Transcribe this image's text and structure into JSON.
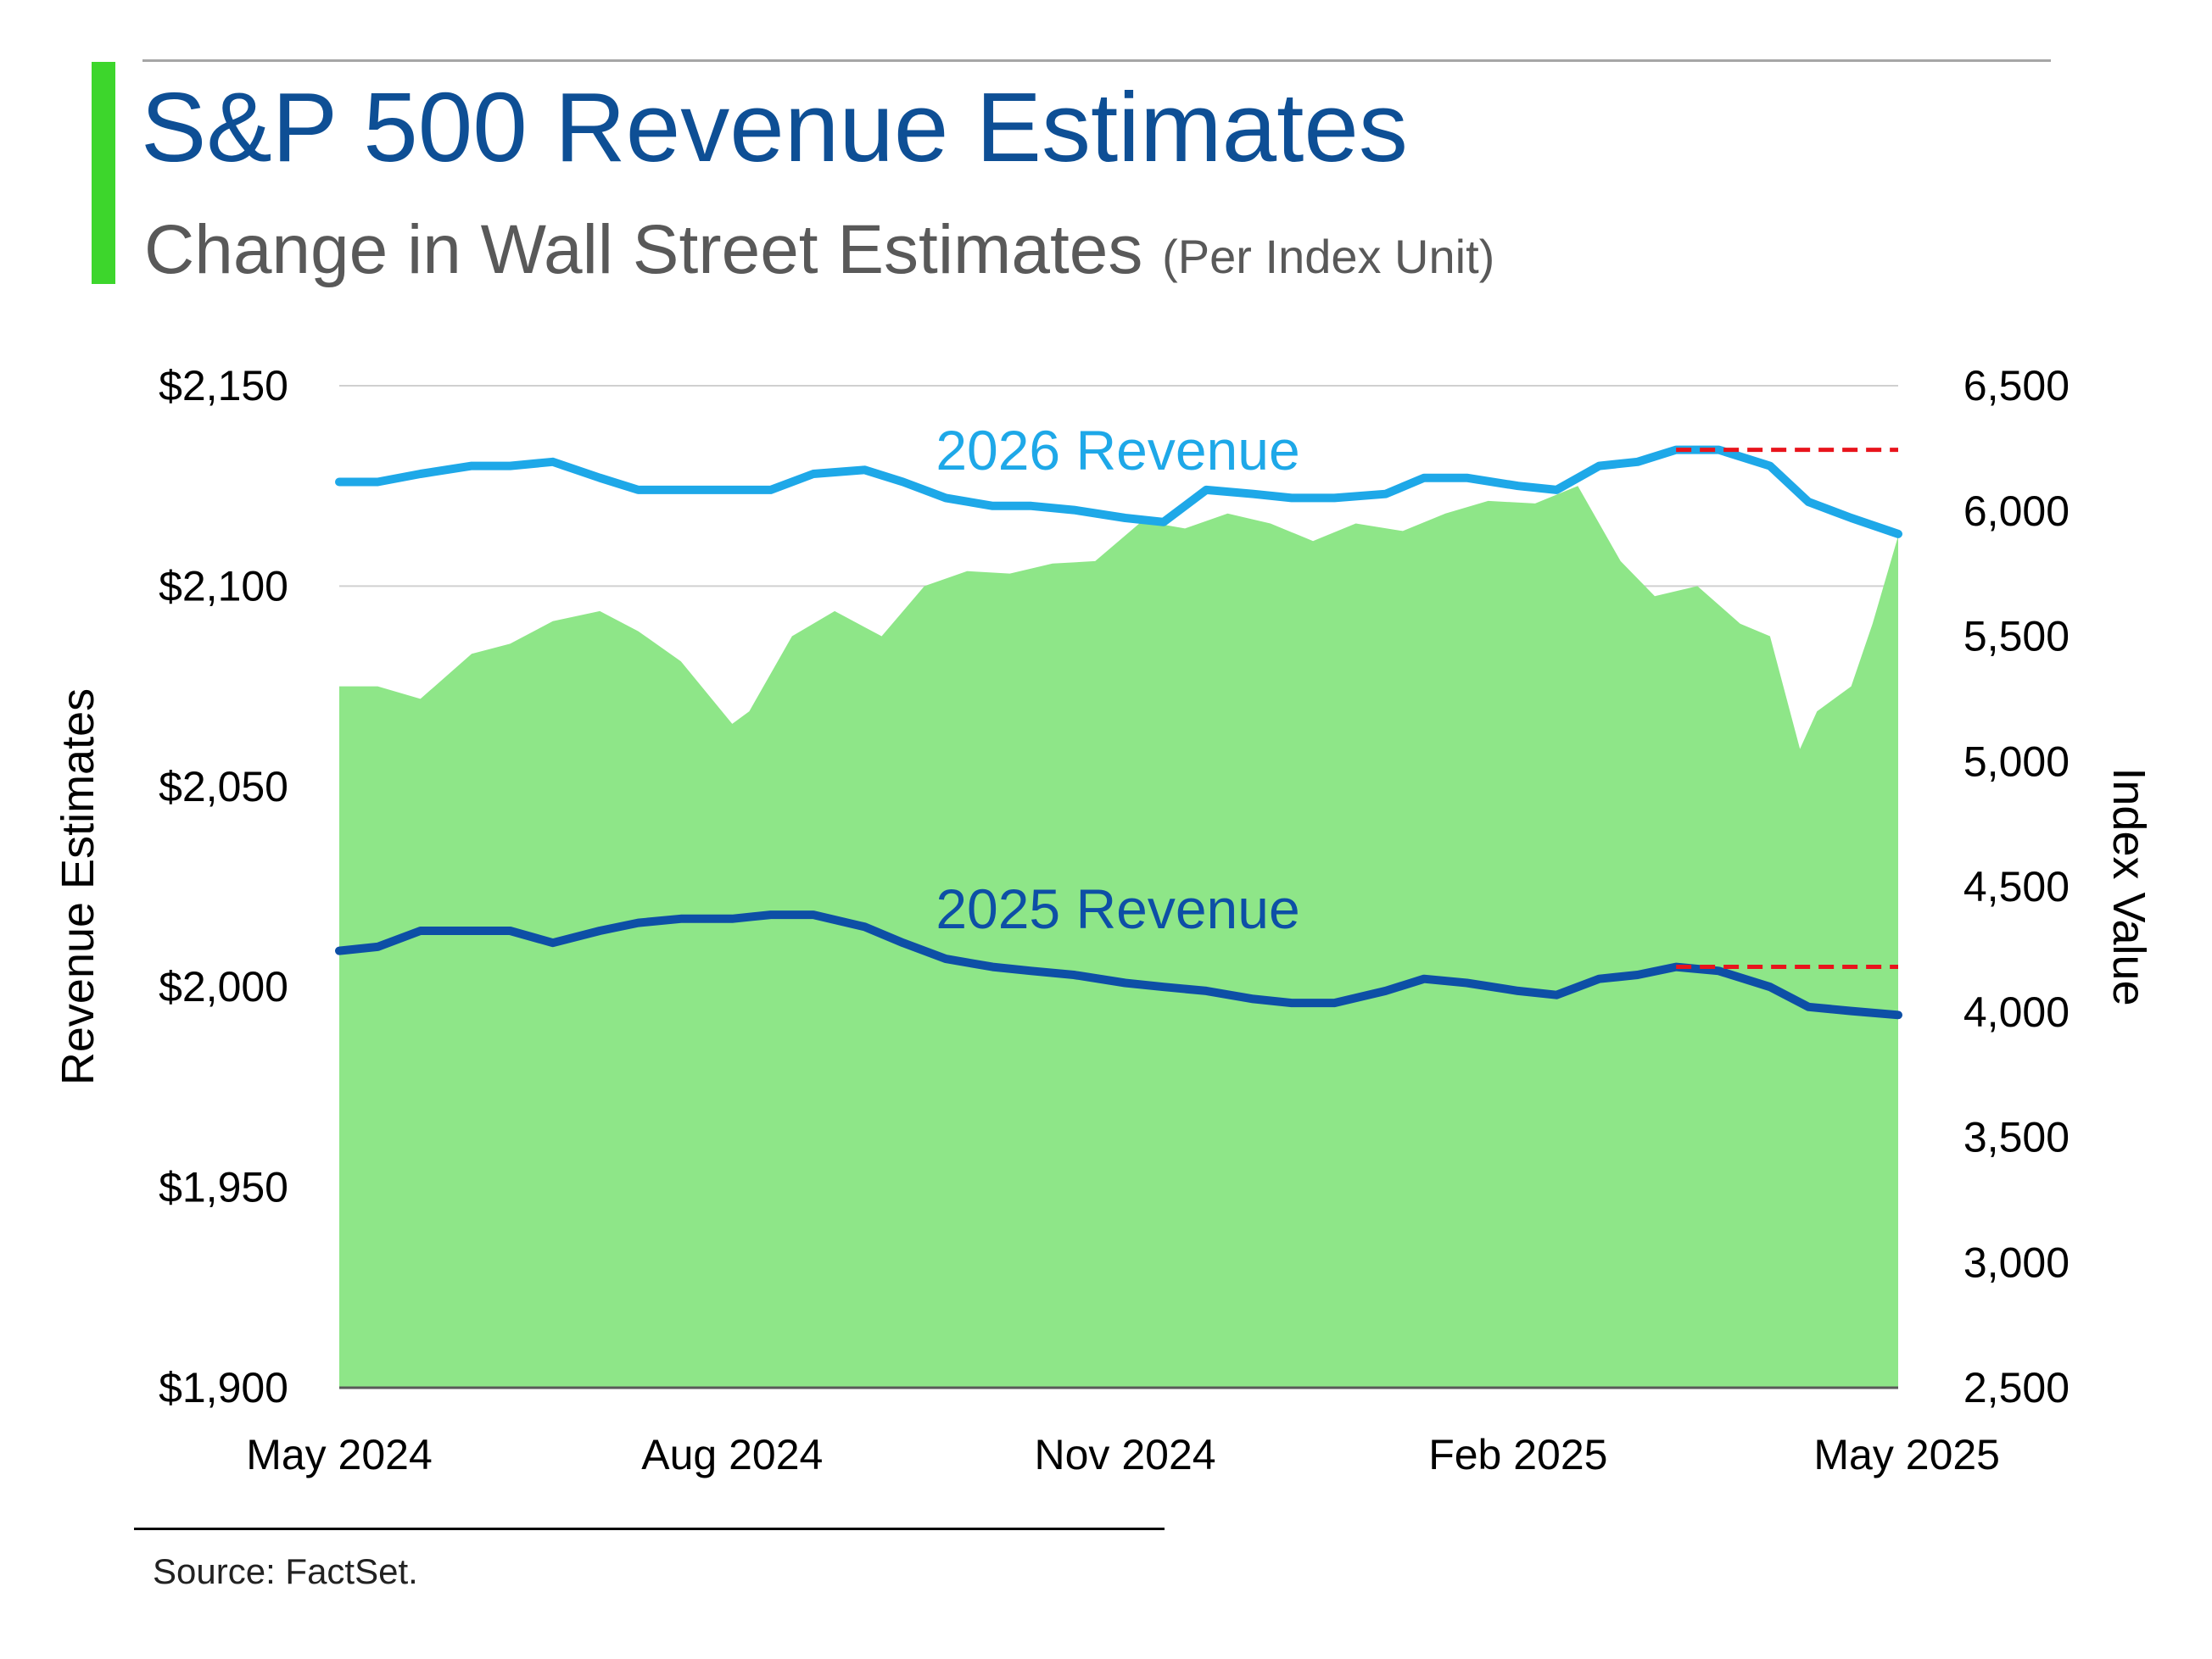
{
  "header": {
    "title": "S&P 500 Revenue Estimates",
    "subtitle": "Change in Wall Street Estimates",
    "subtitle_note": "(Per Index Unit)"
  },
  "footer": {
    "source": "Source: FactSet."
  },
  "colors": {
    "accent_bar": "#3dd62c",
    "area_fill": "#8ee688",
    "rev_2026": "#1ea8e8",
    "rev_2025": "#0d4fa6",
    "peak_ref_line": "#e8141c",
    "title": "#0e4f95",
    "grid": "#d0d0d0"
  },
  "chart_data": {
    "type": "line",
    "title": "S&P 500 Revenue Estimates",
    "ylabel_left": "Revenue Estimates",
    "ylabel_right": "Index Value",
    "xlim": [
      "2024-05-01",
      "2025-05-01"
    ],
    "ylim_left": [
      1900,
      2150
    ],
    "ylim_right": [
      2500,
      6500
    ],
    "x_ticks": [
      "May 2024",
      "Aug 2024",
      "Nov 2024",
      "Feb 2025",
      "May 2025"
    ],
    "x_tick_dates": [
      "2024-05-01",
      "2024-08-01",
      "2024-11-01",
      "2025-02-01",
      "2025-05-01"
    ],
    "y_ticks_left": [
      "$1,900",
      "$1,950",
      "$2,000",
      "$2,050",
      "$2,100",
      "$2,150"
    ],
    "y_tick_values_left": [
      1900,
      1950,
      2000,
      2050,
      2100,
      2150
    ],
    "y_ticks_right": [
      "2,500",
      "3,000",
      "3,500",
      "4,000",
      "4,500",
      "5,000",
      "5,500",
      "6,000",
      "6,500"
    ],
    "y_tick_values_right": [
      2500,
      3000,
      3500,
      4000,
      4500,
      5000,
      5500,
      6000,
      6500
    ],
    "grid": true,
    "series": [
      {
        "name": "2026 Revenue",
        "axis": "left",
        "kind": "line",
        "x": [
          "2024-05-01",
          "2024-05-10",
          "2024-05-20",
          "2024-06-01",
          "2024-06-10",
          "2024-06-20",
          "2024-07-01",
          "2024-07-10",
          "2024-07-20",
          "2024-08-01",
          "2024-08-10",
          "2024-08-20",
          "2024-09-01",
          "2024-09-10",
          "2024-09-20",
          "2024-10-01",
          "2024-10-10",
          "2024-10-20",
          "2024-11-01",
          "2024-11-10",
          "2024-11-20",
          "2024-12-01",
          "2024-12-10",
          "2024-12-20",
          "2025-01-01",
          "2025-01-10",
          "2025-01-20",
          "2025-02-01",
          "2025-02-10",
          "2025-02-20",
          "2025-03-01",
          "2025-03-10",
          "2025-03-20",
          "2025-04-01",
          "2025-04-10",
          "2025-04-20",
          "2025-05-01"
        ],
        "values": [
          2126,
          2126,
          2128,
          2130,
          2130,
          2131,
          2127,
          2124,
          2124,
          2124,
          2124,
          2128,
          2129,
          2126,
          2122,
          2120,
          2120,
          2119,
          2117,
          2116,
          2124,
          2123,
          2122,
          2122,
          2123,
          2127,
          2127,
          2125,
          2124,
          2130,
          2131,
          2134,
          2134,
          2130,
          2121,
          2117,
          2113
        ]
      },
      {
        "name": "2025 Revenue",
        "axis": "left",
        "kind": "line",
        "x": [
          "2024-05-01",
          "2024-05-10",
          "2024-05-20",
          "2024-06-01",
          "2024-06-10",
          "2024-06-20",
          "2024-07-01",
          "2024-07-10",
          "2024-07-20",
          "2024-08-01",
          "2024-08-10",
          "2024-08-20",
          "2024-09-01",
          "2024-09-10",
          "2024-09-20",
          "2024-10-01",
          "2024-10-10",
          "2024-10-20",
          "2024-11-01",
          "2024-11-10",
          "2024-11-20",
          "2024-12-01",
          "2024-12-10",
          "2024-12-20",
          "2025-01-01",
          "2025-01-10",
          "2025-01-20",
          "2025-02-01",
          "2025-02-10",
          "2025-02-20",
          "2025-03-01",
          "2025-03-10",
          "2025-03-20",
          "2025-04-01",
          "2025-04-10",
          "2025-04-20",
          "2025-05-01"
        ],
        "values": [
          2009,
          2010,
          2014,
          2014,
          2014,
          2011,
          2014,
          2016,
          2017,
          2017,
          2018,
          2018,
          2015,
          2011,
          2007,
          2005,
          2004,
          2003,
          2001,
          2000,
          1999,
          1997,
          1996,
          1996,
          1999,
          2002,
          2001,
          1999,
          1998,
          2002,
          2003,
          2005,
          2004,
          2000,
          1995,
          1994,
          1993
        ]
      },
      {
        "name": "Index Value",
        "axis": "right",
        "kind": "area",
        "x": [
          "2024-05-01",
          "2024-05-10",
          "2024-05-20",
          "2024-06-01",
          "2024-06-10",
          "2024-06-20",
          "2024-07-01",
          "2024-07-10",
          "2024-07-20",
          "2024-08-01",
          "2024-08-05",
          "2024-08-15",
          "2024-08-25",
          "2024-09-05",
          "2024-09-15",
          "2024-09-25",
          "2024-10-05",
          "2024-10-15",
          "2024-10-25",
          "2024-11-05",
          "2024-11-15",
          "2024-11-25",
          "2024-12-05",
          "2024-12-15",
          "2024-12-25",
          "2025-01-05",
          "2025-01-15",
          "2025-01-25",
          "2025-02-05",
          "2025-02-15",
          "2025-02-25",
          "2025-03-05",
          "2025-03-15",
          "2025-03-25",
          "2025-04-01",
          "2025-04-08",
          "2025-04-12",
          "2025-04-20",
          "2025-04-25",
          "2025-05-01"
        ],
        "values": [
          5300,
          5300,
          5250,
          5430,
          5470,
          5560,
          5600,
          5520,
          5400,
          5150,
          5200,
          5500,
          5600,
          5500,
          5700,
          5760,
          5750,
          5790,
          5800,
          5960,
          5930,
          5990,
          5950,
          5880,
          5950,
          5920,
          5990,
          6040,
          6030,
          6100,
          5800,
          5660,
          5700,
          5550,
          5500,
          5050,
          5200,
          5300,
          5550,
          5900
        ]
      }
    ],
    "reference_lines": [
      {
        "series": "2026 Revenue",
        "value": 2134,
        "style": "dashed",
        "from": "2025-03-10",
        "to": "2025-05-01"
      },
      {
        "series": "2025 Revenue",
        "value": 2005,
        "style": "dashed",
        "from": "2025-03-10",
        "to": "2025-05-01"
      }
    ],
    "annotations": [
      {
        "text": "2026 Revenue",
        "near_series": "2026 Revenue"
      },
      {
        "text": "2025 Revenue",
        "near_series": "2025 Revenue"
      }
    ]
  }
}
